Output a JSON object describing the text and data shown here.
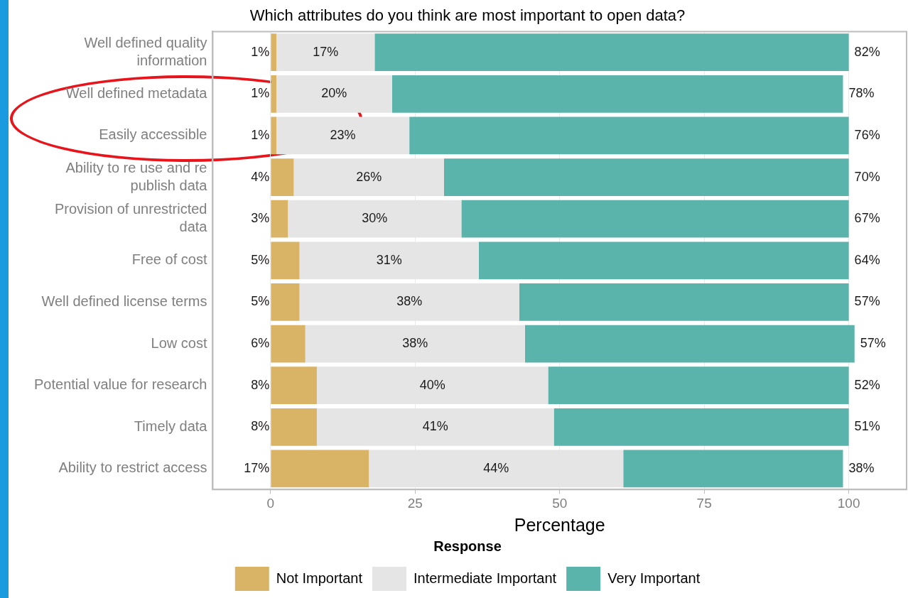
{
  "chart_data": {
    "type": "bar",
    "orientation": "horizontal",
    "stacked": true,
    "title": "Which attributes do you think are most important to open data?",
    "xlabel": "Percentage",
    "legend_title": "Response",
    "legend": "bottom",
    "grid": "x",
    "categories": [
      "Well defined quality information",
      "Well defined metadata",
      "Easily accessible",
      "Ability to re use and re publish data",
      "Provision of unrestricted data",
      "Free of cost",
      "Well defined license terms",
      "Low cost",
      "Potential value for research",
      "Timely data",
      "Ability to restrict access"
    ],
    "xlim": [
      -10,
      110
    ],
    "xticks": [
      0,
      25,
      50,
      75,
      100
    ],
    "series": [
      {
        "name": "Not Important",
        "color": "#d9b366",
        "values": [
          1,
          1,
          1,
          4,
          3,
          5,
          5,
          6,
          8,
          8,
          17
        ],
        "value_labels": [
          "1%",
          "1%",
          "1%",
          "4%",
          "3%",
          "5%",
          "5%",
          "6%",
          "8%",
          "8%",
          "17%"
        ]
      },
      {
        "name": "Intermediate Important",
        "color": "#e5e5e5",
        "values": [
          17,
          20,
          23,
          26,
          30,
          31,
          38,
          38,
          40,
          41,
          44
        ],
        "value_labels": [
          "17%",
          "20%",
          "23%",
          "26%",
          "30%",
          "31%",
          "38%",
          "38%",
          "40%",
          "41%",
          "44%"
        ]
      },
      {
        "name": "Very Important",
        "color": "#5ab4ac",
        "values": [
          82,
          78,
          76,
          70,
          67,
          64,
          57,
          57,
          52,
          51,
          38
        ],
        "value_labels": [
          "82%",
          "78%",
          "76%",
          "70%",
          "67%",
          "64%",
          "57%",
          "57%",
          "52%",
          "51%",
          "38%"
        ]
      }
    ]
  }
}
